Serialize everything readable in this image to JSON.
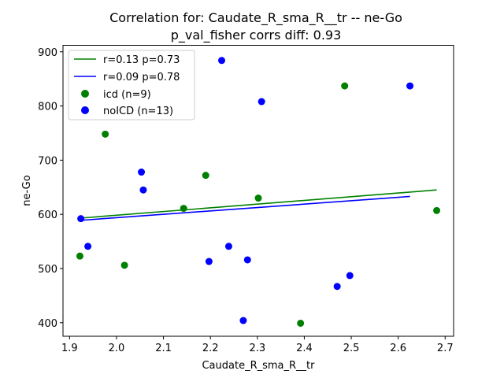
{
  "colors": {
    "icd": "#008000",
    "noicd": "#0000ff",
    "axis": "#000000",
    "background": "#ffffff",
    "legend_border": "#cccccc"
  },
  "chart_data": {
    "type": "scatter",
    "title": "Correlation for: Caudate_R_sma_R__tr -- ne-Go",
    "subtitle": "p_val_fisher corrs diff: 0.93",
    "xlabel": "Caudate_R_sma_R__tr",
    "ylabel": "ne-Go",
    "xlim": [
      1.886,
      2.718
    ],
    "ylim": [
      375,
      912
    ],
    "xticks": [
      1.9,
      2.0,
      2.1,
      2.2,
      2.3,
      2.4,
      2.5,
      2.6,
      2.7
    ],
    "xtick_labels": [
      "1.9",
      "2.0",
      "2.1",
      "2.2",
      "2.3",
      "2.4",
      "2.5",
      "2.6",
      "2.7"
    ],
    "yticks": [
      400,
      500,
      600,
      700,
      800,
      900
    ],
    "ytick_labels": [
      "400",
      "500",
      "600",
      "700",
      "800",
      "900"
    ],
    "grid": false,
    "legend_position": "top-left",
    "series": [
      {
        "name": "icd (n=9)",
        "key": "icd",
        "points": [
          [
            1.922,
            523
          ],
          [
            1.976,
            748
          ],
          [
            2.017,
            506
          ],
          [
            2.143,
            611
          ],
          [
            2.19,
            672
          ],
          [
            2.302,
            630
          ],
          [
            2.392,
            399
          ],
          [
            2.486,
            837
          ],
          [
            2.682,
            607
          ]
        ]
      },
      {
        "name": "noICD (n=13)",
        "key": "noicd",
        "points": [
          [
            1.924,
            592
          ],
          [
            1.939,
            541
          ],
          [
            2.053,
            678
          ],
          [
            2.057,
            645
          ],
          [
            2.197,
            513
          ],
          [
            2.224,
            884
          ],
          [
            2.239,
            541
          ],
          [
            2.27,
            404
          ],
          [
            2.279,
            516
          ],
          [
            2.309,
            808
          ],
          [
            2.47,
            467
          ],
          [
            2.497,
            487
          ],
          [
            2.625,
            837
          ]
        ]
      }
    ],
    "fit_lines": [
      {
        "name": "r=0.13 p=0.73",
        "key": "icd",
        "x": [
          1.922,
          2.682
        ],
        "y": [
          593,
          645
        ]
      },
      {
        "name": "r=0.09 p=0.78",
        "key": "noicd",
        "x": [
          1.924,
          2.625
        ],
        "y": [
          589,
          633
        ]
      }
    ]
  }
}
